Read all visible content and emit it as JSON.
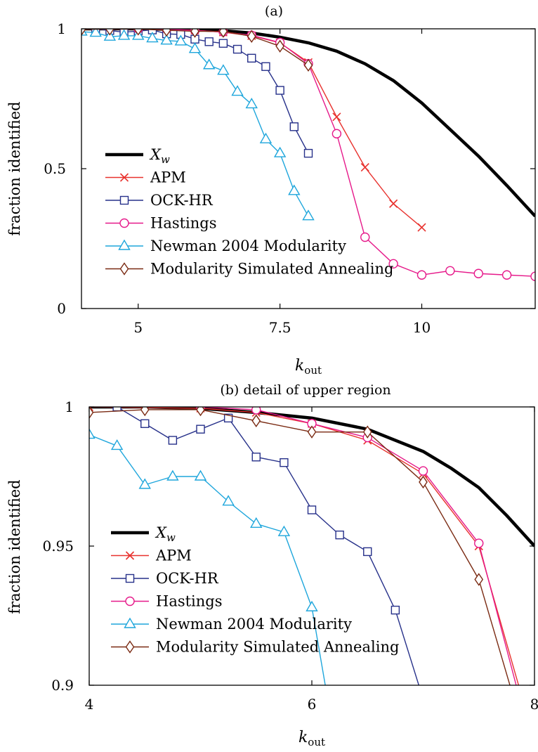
{
  "chart_data": [
    {
      "type": "line",
      "title": "(a)",
      "xlabel_base": "k",
      "xlabel_sub": "out",
      "ylabel": "fraction identified",
      "xlim": [
        4,
        12
      ],
      "ylim": [
        0,
        1
      ],
      "xticks": [
        5,
        7.5,
        10
      ],
      "xtick_labels": [
        "5",
        "7.5",
        "10"
      ],
      "yticks": [
        0,
        0.5,
        1
      ],
      "ytick_labels": [
        "0",
        "0.5",
        "1"
      ],
      "legend_position": "bottom-left",
      "series": [
        {
          "name": "X_w",
          "name_base": "X",
          "name_sub": "w",
          "color": "#000000",
          "marker": "none",
          "x": [
            4,
            5,
            6,
            6.5,
            7,
            7.5,
            8,
            8.5,
            9,
            9.5,
            10,
            10.5,
            11,
            11.5,
            12
          ],
          "y": [
            1.0,
            1.0,
            0.997,
            0.993,
            0.985,
            0.97,
            0.95,
            0.92,
            0.875,
            0.815,
            0.735,
            0.64,
            0.545,
            0.44,
            0.33
          ]
        },
        {
          "name": "APM",
          "color": "#e8322e",
          "marker": "x",
          "x": [
            4,
            4.5,
            5,
            5.5,
            6,
            6.5,
            7,
            7.5,
            8,
            8.5,
            9,
            9.5,
            10
          ],
          "y": [
            1.0,
            0.999,
            0.999,
            0.998,
            0.995,
            0.988,
            0.975,
            0.95,
            0.88,
            0.685,
            0.505,
            0.375,
            0.29
          ]
        },
        {
          "name": "OCK-HR",
          "color": "#27318a",
          "marker": "square",
          "x": [
            4.25,
            4.5,
            4.75,
            5,
            5.25,
            5.5,
            5.75,
            6,
            6.25,
            6.5,
            6.75,
            7,
            7.25,
            7.5,
            7.75,
            8
          ],
          "y": [
            1.0,
            0.994,
            0.988,
            0.992,
            0.996,
            0.982,
            0.98,
            0.963,
            0.954,
            0.948,
            0.927,
            0.895,
            0.865,
            0.78,
            0.65,
            0.555
          ]
        },
        {
          "name": "Hastings",
          "color": "#e6198a",
          "marker": "circle",
          "x": [
            5,
            5.5,
            6,
            6.5,
            7,
            7.5,
            8,
            8.5,
            9,
            9.5,
            10,
            10.5,
            11,
            11.5,
            12
          ],
          "y": [
            1.0,
            0.999,
            0.994,
            0.989,
            0.977,
            0.951,
            0.875,
            0.625,
            0.255,
            0.16,
            0.12,
            0.135,
            0.125,
            0.12,
            0.115
          ]
        },
        {
          "name": "Newman 2004 Modularity",
          "color": "#1ea6dc",
          "marker": "triangle",
          "x": [
            4,
            4.25,
            4.5,
            4.75,
            5,
            5.25,
            5.5,
            5.75,
            6,
            6.25,
            6.5,
            6.75,
            7,
            7.25,
            7.5,
            7.75,
            8
          ],
          "y": [
            0.99,
            0.986,
            0.972,
            0.975,
            0.975,
            0.966,
            0.958,
            0.955,
            0.928,
            0.87,
            0.85,
            0.775,
            0.73,
            0.605,
            0.555,
            0.42,
            0.33
          ]
        },
        {
          "name": "Modularity Simulated Annealing",
          "color": "#7a2a12",
          "marker": "diamond",
          "x": [
            4,
            4.5,
            5,
            5.5,
            6,
            6.5,
            7,
            7.5,
            8
          ],
          "y": [
            0.998,
            0.999,
            0.999,
            0.995,
            0.991,
            0.991,
            0.973,
            0.938,
            0.87
          ]
        }
      ]
    },
    {
      "type": "line",
      "title": "(b) detail of upper region",
      "xlabel_base": "k",
      "xlabel_sub": "out",
      "ylabel": "fraction identified",
      "xlim": [
        4,
        8
      ],
      "ylim": [
        0.9,
        1
      ],
      "xticks": [
        4,
        6,
        8
      ],
      "xtick_labels": [
        "4",
        "6",
        "8"
      ],
      "yticks": [
        0.9,
        0.95,
        1
      ],
      "ytick_labels": [
        "0.9",
        "0.95",
        "1"
      ],
      "legend_position": "bottom-left",
      "series": [
        {
          "name": "X_w",
          "name_base": "X",
          "name_sub": "w",
          "color": "#000000",
          "marker": "none",
          "x": [
            4,
            4.5,
            5,
            5.5,
            6,
            6.5,
            7,
            7.25,
            7.5,
            7.75,
            8
          ],
          "y": [
            1.0,
            1.0,
            0.9995,
            0.998,
            0.996,
            0.992,
            0.984,
            0.978,
            0.971,
            0.961,
            0.95
          ]
        },
        {
          "name": "APM",
          "color": "#e8322e",
          "marker": "x",
          "x": [
            4,
            5,
            5.5,
            6,
            6.5,
            7,
            7.5,
            8
          ],
          "y": [
            1.0,
            0.9995,
            0.998,
            0.994,
            0.988,
            0.976,
            0.95,
            0.88
          ]
        },
        {
          "name": "OCK-HR",
          "color": "#27318a",
          "marker": "square",
          "x": [
            4.25,
            4.5,
            4.75,
            5,
            5.25,
            5.5,
            5.75,
            6,
            6.25,
            6.5,
            6.75,
            7
          ],
          "y": [
            1.0,
            0.994,
            0.988,
            0.992,
            0.996,
            0.982,
            0.98,
            0.963,
            0.954,
            0.948,
            0.927,
            0.895
          ]
        },
        {
          "name": "Hastings",
          "color": "#e6198a",
          "marker": "circle",
          "x": [
            5,
            5.5,
            6,
            6.5,
            7,
            7.5,
            8
          ],
          "y": [
            1.0,
            0.999,
            0.994,
            0.989,
            0.977,
            0.951,
            0.875
          ]
        },
        {
          "name": "Newman 2004 Modularity",
          "color": "#1ea6dc",
          "marker": "triangle",
          "x": [
            4,
            4.25,
            4.5,
            4.75,
            5,
            5.25,
            5.5,
            5.75,
            6,
            6.25
          ],
          "y": [
            0.99,
            0.986,
            0.972,
            0.975,
            0.975,
            0.966,
            0.958,
            0.955,
            0.928,
            0.87
          ]
        },
        {
          "name": "Modularity Simulated Annealing",
          "color": "#7a2a12",
          "marker": "diamond",
          "x": [
            4,
            4.5,
            5,
            5.5,
            6,
            6.5,
            7,
            7.5,
            8
          ],
          "y": [
            0.998,
            0.999,
            0.999,
            0.995,
            0.991,
            0.991,
            0.973,
            0.938,
            0.87
          ]
        }
      ]
    }
  ]
}
